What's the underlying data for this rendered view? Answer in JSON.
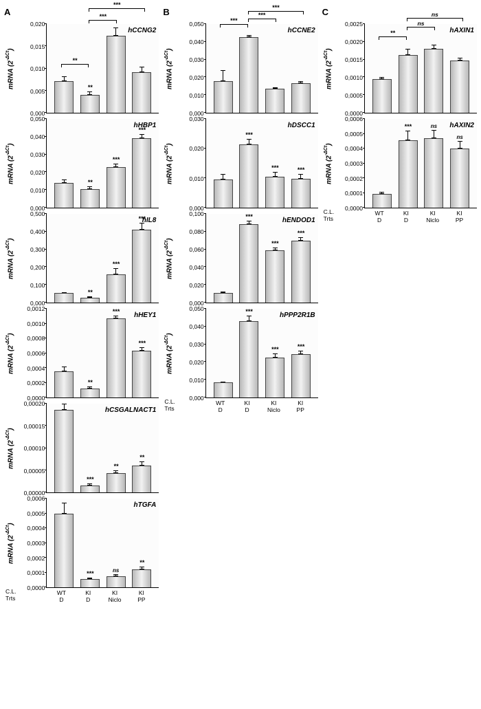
{
  "figure": {
    "background_color": "#ffffff",
    "bar_gradient": [
      "#b8b8b8",
      "#f2f2f2",
      "#b8b8b8"
    ],
    "axis_color": "#000000",
    "font_family": "Arial",
    "ylab": "mRNA (2^-ΔCt)",
    "columns": {
      "A": {
        "label": "A"
      },
      "B": {
        "label": "B"
      },
      "C": {
        "label": "C"
      }
    },
    "x_categories_header": {
      "cl": "C.L.",
      "trts": "Trts"
    },
    "x_categories": [
      {
        "cl": "WT",
        "trt": "D"
      },
      {
        "cl": "KI",
        "trt": "D"
      },
      {
        "cl": "KI",
        "trt": "Niclo"
      },
      {
        "cl": "KI",
        "trt": "PP"
      }
    ]
  },
  "panels": {
    "A": [
      {
        "gene": "hCCNG2",
        "ymax": 0.02,
        "ystep": 0.005,
        "decimals": 3,
        "bars": [
          {
            "v": 0.0072,
            "e": 0.001
          },
          {
            "v": 0.004,
            "e": 0.0008,
            "sig": "**"
          },
          {
            "v": 0.0174,
            "e": 0.0018
          },
          {
            "v": 0.0092,
            "e": 0.0012
          }
        ],
        "brackets": [
          {
            "from": 0,
            "to": 1,
            "y": 0.011,
            "label": "**"
          },
          {
            "from": 1,
            "to": 2,
            "y": 0.021,
            "label": "***"
          },
          {
            "from": 1,
            "to": 3,
            "y": 0.0235,
            "label": "***"
          }
        ]
      },
      {
        "gene": "hHBP1",
        "ymax": 0.05,
        "ystep": 0.01,
        "decimals": 3,
        "bars": [
          {
            "v": 0.014,
            "e": 0.002
          },
          {
            "v": 0.0105,
            "e": 0.0015,
            "sig": "**"
          },
          {
            "v": 0.023,
            "e": 0.0018,
            "sig": "***"
          },
          {
            "v": 0.039,
            "e": 0.0025,
            "sig": "***"
          }
        ],
        "brackets": []
      },
      {
        "gene": "hIL8",
        "ymax": 0.5,
        "ystep": 0.1,
        "decimals": 3,
        "bars": [
          {
            "v": 0.056,
            "e": 0.004
          },
          {
            "v": 0.029,
            "e": 0.005,
            "sig": "**"
          },
          {
            "v": 0.16,
            "e": 0.035,
            "sig": "***"
          },
          {
            "v": 0.41,
            "e": 0.04,
            "sig": "***"
          }
        ],
        "brackets": []
      },
      {
        "gene": "hHEY1",
        "ymax": 0.0012,
        "ystep": 0.0002,
        "decimals": 4,
        "bars": [
          {
            "v": 0.00035,
            "e": 7e-05
          },
          {
            "v": 0.00012,
            "e": 3e-05,
            "sig": "**"
          },
          {
            "v": 0.00112,
            "e": 4e-05,
            "sig": "***"
          },
          {
            "v": 0.00063,
            "e": 5e-05,
            "sig": "***"
          }
        ],
        "brackets": []
      },
      {
        "gene": "hCSGALNACT1",
        "ymax": 0.0002,
        "ystep": 5e-05,
        "decimals": 5,
        "bars": [
          {
            "v": 0.000205,
            "e": 1.5e-05
          },
          {
            "v": 1.6e-05,
            "e": 4e-06,
            "sig": "***"
          },
          {
            "v": 4.4e-05,
            "e": 6e-06,
            "sig": "**"
          },
          {
            "v": 6e-05,
            "e": 1e-05,
            "sig": "**"
          }
        ],
        "brackets": []
      },
      {
        "gene": "hTGFA",
        "ymax": 0.0006,
        "ystep": 0.0001,
        "decimals": 4,
        "bars": [
          {
            "v": 0.0005,
            "e": 7e-05
          },
          {
            "v": 5.5e-05,
            "e": 1.2e-05,
            "sig": "***"
          },
          {
            "v": 7.5e-05,
            "e": 1.5e-05,
            "sig": "ns"
          },
          {
            "v": 0.00012,
            "e": 1.8e-05,
            "sig": "**"
          }
        ],
        "brackets": []
      }
    ],
    "B": [
      {
        "gene": "hCCNE2",
        "ymax": 0.05,
        "ystep": 0.01,
        "decimals": 3,
        "bars": [
          {
            "v": 0.018,
            "e": 0.006
          },
          {
            "v": 0.0425,
            "e": 0.0015
          },
          {
            "v": 0.0135,
            "e": 0.001
          },
          {
            "v": 0.0165,
            "e": 0.0015
          }
        ],
        "brackets": [
          {
            "from": 0,
            "to": 1,
            "y": 0.05,
            "label": "***"
          },
          {
            "from": 1,
            "to": 2,
            "y": 0.053,
            "label": "***"
          },
          {
            "from": 1,
            "to": 3,
            "y": 0.0575,
            "label": "***"
          }
        ]
      },
      {
        "gene": "hDSCC1",
        "ymax": 0.03,
        "ystep": 0.01,
        "decimals": 3,
        "bars": [
          {
            "v": 0.0095,
            "e": 0.002
          },
          {
            "v": 0.0215,
            "e": 0.0018,
            "sig": "***"
          },
          {
            "v": 0.0105,
            "e": 0.0015,
            "sig": "***"
          },
          {
            "v": 0.0098,
            "e": 0.0015,
            "sig": "***"
          }
        ],
        "brackets": []
      },
      {
        "gene": "hENDOD1",
        "ymax": 0.1,
        "ystep": 0.02,
        "decimals": 3,
        "bars": [
          {
            "v": 0.011,
            "e": 0.0015
          },
          {
            "v": 0.093,
            "e": 0.004,
            "sig": "***"
          },
          {
            "v": 0.059,
            "e": 0.003,
            "sig": "***"
          },
          {
            "v": 0.07,
            "e": 0.004,
            "sig": "***"
          }
        ],
        "brackets": []
      },
      {
        "gene": "hPPP2R1B",
        "ymax": 0.05,
        "ystep": 0.01,
        "decimals": 3,
        "bars": [
          {
            "v": 0.0085,
            "e": 0.0005
          },
          {
            "v": 0.0435,
            "e": 0.003,
            "sig": "***"
          },
          {
            "v": 0.0225,
            "e": 0.0025,
            "sig": "***"
          },
          {
            "v": 0.0245,
            "e": 0.002,
            "sig": "***"
          }
        ],
        "brackets": []
      }
    ],
    "C": [
      {
        "gene": "hAXIN1",
        "ymax": 0.0025,
        "ystep": 0.0005,
        "decimals": 4,
        "bars": [
          {
            "v": 0.00095,
            "e": 6e-05
          },
          {
            "v": 0.00163,
            "e": 0.00018
          },
          {
            "v": 0.0018,
            "e": 0.00012
          },
          {
            "v": 0.00148,
            "e": 8e-05
          }
        ],
        "brackets": [
          {
            "from": 0,
            "to": 1,
            "y": 0.00215,
            "label": "**"
          },
          {
            "from": 1,
            "to": 2,
            "y": 0.00242,
            "label": "ns"
          },
          {
            "from": 1,
            "to": 3,
            "y": 0.00268,
            "label": "ns"
          }
        ]
      },
      {
        "gene": "hAXIN2",
        "ymax": 0.0006,
        "ystep": 0.0001,
        "decimals": 4,
        "bars": [
          {
            "v": 9.5e-05,
            "e": 1e-05
          },
          {
            "v": 0.000455,
            "e": 6.5e-05,
            "sig": "***"
          },
          {
            "v": 0.00047,
            "e": 5.5e-05,
            "sig": "ns"
          },
          {
            "v": 0.0004,
            "e": 5e-05,
            "sig": "ns"
          }
        ],
        "brackets": []
      }
    ]
  }
}
